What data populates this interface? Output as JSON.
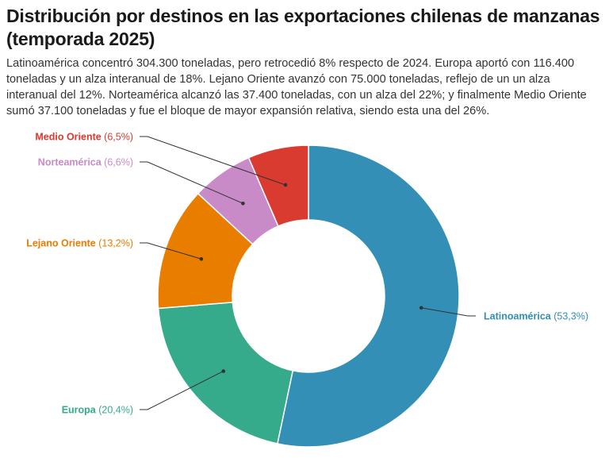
{
  "title": "Distribución por destinos en las exportaciones chilenas de manzanas (temporada 2025)",
  "subtitle": "Latinoamérica concentró 304.300 toneladas, pero retrocedió 8% respecto de 2024. Europa aportó con 116.400 toneladas y un alza interanual de 18%. Lejano Oriente avanzó con 75.000 toneladas, reflejo de un un alza interanual del 12%. Norteamérica alcanzó las 37.400 toneladas, con un alza del 22%; y finalmente Medio Oriente sumó 37.100 toneladas y fue el bloque de mayor expansión relativa, siendo esta una del 26%.",
  "chart_data": {
    "type": "pie",
    "variant": "donut",
    "legend": "callout labels",
    "slices": [
      {
        "name": "Latinoamérica",
        "value": 53.3,
        "pct_label": "(53,3%)",
        "color": "#338fb5"
      },
      {
        "name": "Europa",
        "value": 20.4,
        "pct_label": "(20,4%)",
        "color": "#35ab8c"
      },
      {
        "name": "Lejano Oriente",
        "value": 13.2,
        "pct_label": "(13,2%)",
        "color": "#e87d00"
      },
      {
        "name": "Norteamérica",
        "value": 6.6,
        "pct_label": "(6,6%)",
        "color": "#c98ac8"
      },
      {
        "name": "Medio Oriente",
        "value": 6.5,
        "pct_label": "(6,5%)",
        "color": "#d93b30"
      }
    ]
  }
}
